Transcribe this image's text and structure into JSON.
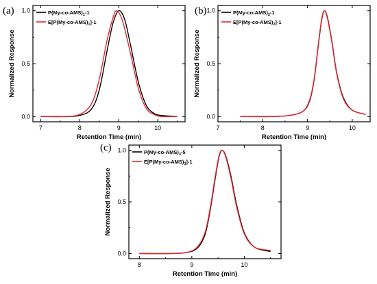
{
  "chart_data": [
    {
      "panel_label": "(a)",
      "type": "line",
      "xlabel": "Retention Time (min)",
      "ylabel": "Normalized Response",
      "xlim": [
        6.8,
        10.7
      ],
      "ylim": [
        -0.05,
        1.05
      ],
      "xticks": [
        7,
        8,
        9,
        10
      ],
      "yticks": [
        0.0,
        0.5,
        1.0
      ],
      "xtick_labels": [
        "7",
        "8",
        "9",
        "10"
      ],
      "ytick_labels": [
        "0.0",
        "0.5",
        "1.0"
      ],
      "series": [
        {
          "name": "P(My-co-AMS)1-1",
          "name_main": "P(My-co-AMS)",
          "name_sub": "1",
          "name_tail": "-1",
          "color": "#000000",
          "x": [
            7.0,
            7.6,
            8.0,
            8.3,
            8.5,
            8.7,
            8.85,
            9.0,
            9.15,
            9.3,
            9.5,
            9.7,
            9.9,
            10.1,
            10.5
          ],
          "y": [
            0.0,
            0.0,
            0.01,
            0.07,
            0.25,
            0.62,
            0.88,
            1.0,
            0.92,
            0.68,
            0.33,
            0.11,
            0.03,
            0.01,
            0.0
          ]
        },
        {
          "name": "E[P(My-co-AMS)1]-1",
          "name_main": "E[P(My-co-AMS)",
          "name_sub": "1",
          "name_tail": "]-1",
          "color": "#e8242b",
          "x": [
            7.0,
            7.6,
            8.0,
            8.3,
            8.5,
            8.7,
            8.85,
            8.95,
            9.1,
            9.3,
            9.5,
            9.7,
            9.9,
            10.1,
            10.5
          ],
          "y": [
            0.0,
            0.0,
            0.02,
            0.12,
            0.35,
            0.72,
            0.93,
            1.0,
            0.9,
            0.6,
            0.27,
            0.08,
            0.02,
            0.0,
            0.0
          ]
        }
      ]
    },
    {
      "panel_label": "(b)",
      "type": "line",
      "xlabel": "Retention Time (min)",
      "ylabel": "Normalized Response",
      "xlim": [
        7.0,
        10.4
      ],
      "ylim": [
        -0.05,
        1.05
      ],
      "xticks": [
        7,
        8,
        9,
        10
      ],
      "yticks": [
        0.0,
        0.5,
        1.0
      ],
      "xtick_labels": [
        "7",
        "8",
        "9",
        "10"
      ],
      "ytick_labels": [
        "0.0",
        "0.5",
        "1.0"
      ],
      "series": [
        {
          "name": "P(My-co-AMS)2-1",
          "name_main": "P(My-co-AMS)",
          "name_sub": "2",
          "name_tail": "-1",
          "color": "#000000",
          "x": [
            7.5,
            8.2,
            8.6,
            8.9,
            9.05,
            9.15,
            9.25,
            9.32,
            9.38,
            9.45,
            9.55,
            9.65,
            9.8,
            10.0,
            10.3
          ],
          "y": [
            0.0,
            0.0,
            0.01,
            0.05,
            0.15,
            0.35,
            0.7,
            0.92,
            1.0,
            0.93,
            0.7,
            0.42,
            0.18,
            0.06,
            0.02
          ]
        },
        {
          "name": "E[P(My-co-AMS)2]-1",
          "name_main": "E[P(My-co-AMS)",
          "name_sub": "2",
          "name_tail": "]-1",
          "color": "#e8242b",
          "x": [
            7.5,
            8.2,
            8.6,
            8.9,
            9.05,
            9.15,
            9.25,
            9.32,
            9.38,
            9.45,
            9.55,
            9.65,
            9.8,
            10.0,
            10.3
          ],
          "y": [
            0.0,
            0.0,
            0.01,
            0.05,
            0.16,
            0.36,
            0.71,
            0.93,
            1.0,
            0.92,
            0.69,
            0.41,
            0.17,
            0.06,
            0.02
          ]
        }
      ]
    },
    {
      "panel_label": "(c)",
      "type": "line",
      "xlabel": "Retention Time (min)",
      "ylabel": "Normalized Response",
      "xlim": [
        7.8,
        10.7
      ],
      "ylim": [
        -0.05,
        1.05
      ],
      "xticks": [
        8,
        9,
        10
      ],
      "yticks": [
        0.0,
        0.5,
        1.0
      ],
      "xtick_labels": [
        "8",
        "9",
        "10"
      ],
      "ytick_labels": [
        "0.0",
        "0.5",
        "1.0"
      ],
      "series": [
        {
          "name": "P(My-co-AMS)3-5",
          "name_main": "P(My-co-AMS)",
          "name_sub": "3",
          "name_tail": "-5",
          "color": "#000000",
          "x": [
            8.0,
            8.6,
            8.9,
            9.1,
            9.25,
            9.35,
            9.45,
            9.52,
            9.58,
            9.65,
            9.75,
            9.85,
            10.0,
            10.2,
            10.5
          ],
          "y": [
            0.0,
            0.0,
            0.01,
            0.05,
            0.18,
            0.42,
            0.74,
            0.94,
            1.0,
            0.94,
            0.74,
            0.48,
            0.2,
            0.06,
            0.02
          ]
        },
        {
          "name": "E[P(My-co-AMS)3]-1",
          "name_main": "E[P(My-co-AMS)",
          "name_sub": "3",
          "name_tail": "]-1",
          "color": "#e8242b",
          "x": [
            8.0,
            8.6,
            8.9,
            9.1,
            9.25,
            9.35,
            9.45,
            9.52,
            9.58,
            9.65,
            9.75,
            9.85,
            10.0,
            10.2,
            10.5
          ],
          "y": [
            0.0,
            0.0,
            0.01,
            0.06,
            0.2,
            0.44,
            0.76,
            0.95,
            1.0,
            0.93,
            0.72,
            0.46,
            0.19,
            0.06,
            0.03
          ]
        }
      ]
    }
  ]
}
